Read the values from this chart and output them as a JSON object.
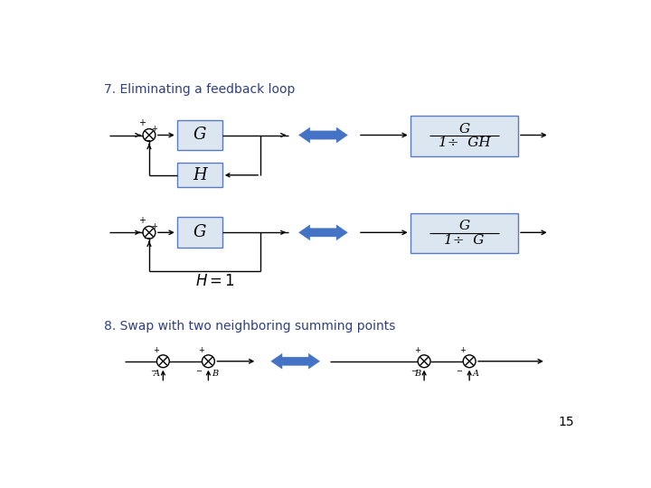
{
  "title_1": "7. Eliminating a feedback loop",
  "title_2": "8. Swap with two neighboring summing points",
  "bg_color": "#ffffff",
  "title_color": "#2e4080",
  "box_fill": "#dce6f1",
  "box_edge": "#5a7abf",
  "line_color": "#000000",
  "arrow_color": "#4472c4",
  "page_num": "15",
  "font_size_title": 10,
  "font_size_label": 10,
  "numer1": "G",
  "denom1": "1÷ GH",
  "numer2": "G",
  "denom2": "1÷ G"
}
